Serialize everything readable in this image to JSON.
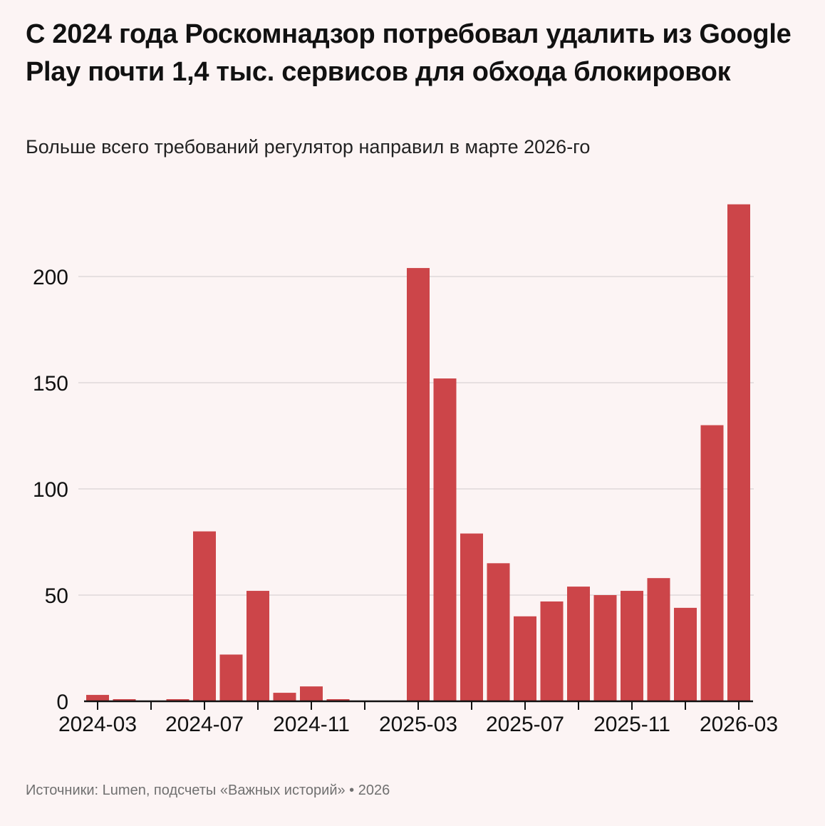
{
  "header": {
    "title": "С 2024 года Роскомнадзор потребовал удалить из Google Play почти 1,4 тыс. сервисов для обхода блокировок",
    "subtitle": "Больше всего требований регулятор направил в марте 2026-го"
  },
  "footer": {
    "source": "Источники: Lumen, подсчеты «Важных историй» • 2026"
  },
  "colors": {
    "background": "#fcf4f4",
    "bar": "#cc4549",
    "grid": "#e6dfe0",
    "axis": "#111111"
  },
  "chart_data": {
    "type": "bar",
    "title": "С 2024 года Роскомнадзор потребовал удалить из Google Play почти 1,4 тыс. сервисов для обхода блокировок",
    "subtitle": "Больше всего требований регулятор направил в марте 2026-го",
    "xlabel": "",
    "ylabel": "",
    "categories": [
      "2024-03",
      "2024-04",
      "2024-05",
      "2024-06",
      "2024-07",
      "2024-08",
      "2024-09",
      "2024-10",
      "2024-11",
      "2024-12",
      "2025-01",
      "2025-02",
      "2025-03",
      "2025-04",
      "2025-05",
      "2025-06",
      "2025-07",
      "2025-08",
      "2025-09",
      "2025-10",
      "2025-11",
      "2025-12",
      "2026-01",
      "2026-02",
      "2026-03"
    ],
    "values": [
      3,
      1,
      0,
      1,
      80,
      22,
      52,
      4,
      7,
      1,
      0,
      0,
      204,
      152,
      79,
      65,
      40,
      47,
      54,
      50,
      52,
      58,
      44,
      130,
      234
    ],
    "x_tick_labels": [
      "2024-03",
      "2024-07",
      "2024-11",
      "2025-03",
      "2025-07",
      "2025-11",
      "2026-03"
    ],
    "y_ticks": [
      0,
      50,
      100,
      150,
      200
    ],
    "ylim": [
      0,
      240
    ],
    "grid": true,
    "legend": "none"
  }
}
